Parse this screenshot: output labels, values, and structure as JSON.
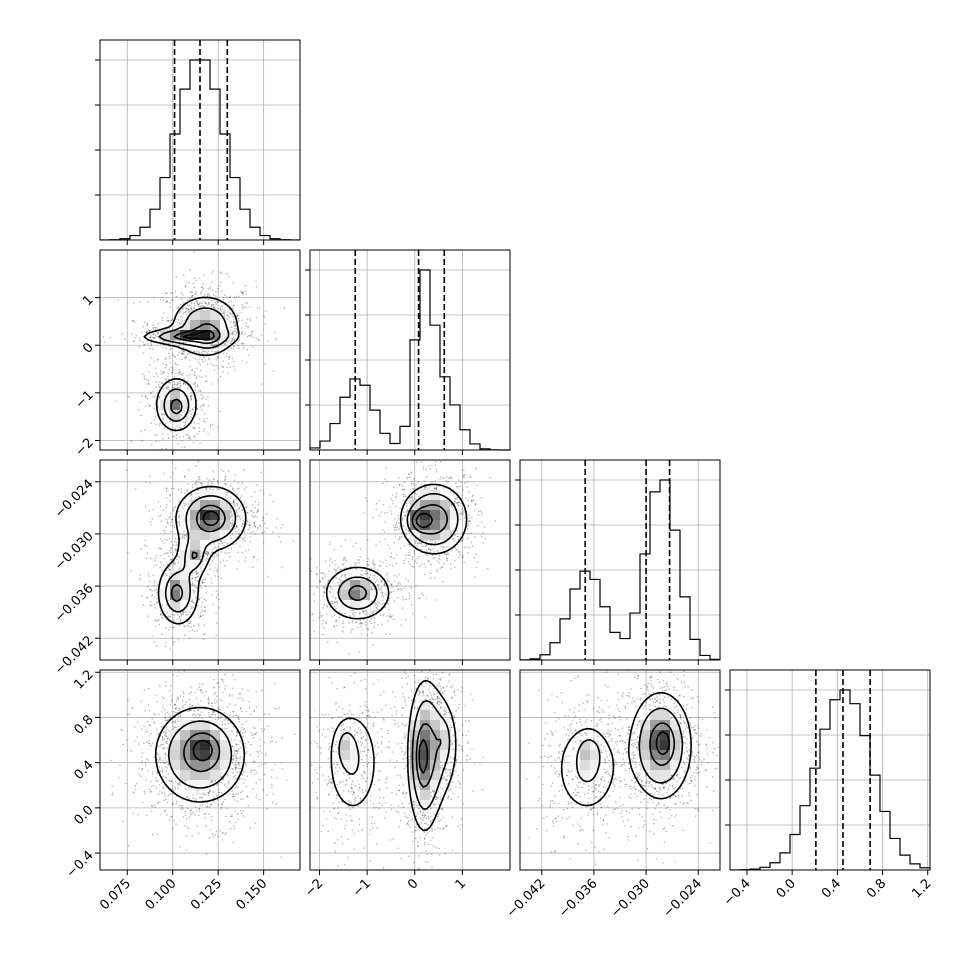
{
  "chart_data": {
    "type": "corner",
    "params": [
      {
        "id": "p1",
        "range": [
          0.06,
          0.17
        ],
        "ticks": [
          0.075,
          0.1,
          0.125,
          0.15
        ],
        "tick_labels": [
          "0.075",
          "0.100",
          "0.125",
          "0.150"
        ],
        "quantiles": [
          0.101,
          0.115,
          0.13
        ],
        "modes": [
          {
            "mu": 0.115,
            "sigma": 0.013,
            "w": 1.0
          }
        ]
      },
      {
        "id": "p2",
        "range": [
          -2.2,
          2.0
        ],
        "ticks": [
          -2,
          -1,
          0,
          1
        ],
        "tick_labels": [
          "−2",
          "−1",
          "0",
          "1"
        ],
        "quantiles": [
          -1.25,
          0.08,
          0.62
        ],
        "modes": [
          {
            "mu": -1.2,
            "sigma": 0.33,
            "w": 0.33
          },
          {
            "mu": 0.18,
            "sigma": 0.18,
            "w": 0.37
          },
          {
            "mu": 0.55,
            "sigma": 0.32,
            "w": 0.3
          }
        ]
      },
      {
        "id": "p3",
        "range": [
          -0.0445,
          -0.0215
        ],
        "ticks": [
          -0.042,
          -0.036,
          -0.03,
          -0.024
        ],
        "tick_labels": [
          "−0.042",
          "−0.036",
          "−0.030",
          "−0.024"
        ],
        "quantiles": [
          -0.037,
          -0.03,
          -0.0273
        ],
        "modes": [
          {
            "mu": -0.0368,
            "sigma": 0.002,
            "w": 0.35
          },
          {
            "mu": -0.0282,
            "sigma": 0.0018,
            "w": 0.65
          }
        ]
      },
      {
        "id": "p4",
        "range": [
          -0.55,
          1.22
        ],
        "ticks": [
          -0.4,
          0.0,
          0.4,
          0.8,
          1.2
        ],
        "tick_labels": [
          "−0.4",
          "0.0",
          "0.4",
          "0.8",
          "1.2"
        ],
        "quantiles": [
          0.21,
          0.45,
          0.69
        ],
        "modes": [
          {
            "mu": 0.46,
            "sigma": 0.24,
            "w": 1.0
          }
        ]
      }
    ],
    "pairs": [
      {
        "x": "p1",
        "y": "p2",
        "blobs": [
          {
            "mx": 0.118,
            "my": 0.4,
            "sx": 0.011,
            "sy": 0.38,
            "w": 0.55,
            "peak": [
              0.12,
              0.2
            ]
          },
          {
            "mx": 0.102,
            "my": -1.25,
            "sx": 0.007,
            "sy": 0.35,
            "w": 0.3,
            "peak": [
              0.102,
              -1.3
            ]
          },
          {
            "mx": 0.105,
            "my": 0.18,
            "sx": 0.014,
            "sy": 0.1,
            "w": 0.15,
            "peak": [
              0.11,
              0.18
            ]
          }
        ]
      },
      {
        "x": "p1",
        "y": "p3",
        "blobs": [
          {
            "mx": 0.121,
            "my": -0.0282,
            "sx": 0.011,
            "sy": 0.0021,
            "w": 0.6,
            "peak": [
              0.121,
              -0.0282
            ]
          },
          {
            "mx": 0.103,
            "my": -0.0368,
            "sx": 0.007,
            "sy": 0.0023,
            "w": 0.3,
            "peak": [
              0.102,
              -0.0368
            ]
          },
          {
            "mx": 0.112,
            "my": -0.0325,
            "sx": 0.005,
            "sy": 0.0015,
            "w": 0.1,
            "peak": [
              0.112,
              -0.0325
            ]
          }
        ]
      },
      {
        "x": "p1",
        "y": "p4",
        "blobs": [
          {
            "mx": 0.115,
            "my": 0.47,
            "sx": 0.014,
            "sy": 0.24,
            "w": 1.0,
            "peak": [
              0.117,
              0.52
            ]
          }
        ]
      },
      {
        "x": "p2",
        "y": "p3",
        "blobs": [
          {
            "mx": 0.4,
            "my": -0.0283,
            "sx": 0.38,
            "sy": 0.0022,
            "w": 0.62,
            "peak": [
              0.12,
              -0.0285
            ]
          },
          {
            "mx": -1.2,
            "my": -0.0368,
            "sx": 0.42,
            "sy": 0.0019,
            "w": 0.38,
            "peak": [
              -1.2,
              -0.0368
            ]
          }
        ]
      },
      {
        "x": "p2",
        "y": "p4",
        "blobs": [
          {
            "mx": -1.3,
            "my": 0.4,
            "sx": 0.35,
            "sy": 0.3,
            "w": 0.33,
            "peak": [
              -1.45,
              0.55
            ]
          },
          {
            "mx": 0.2,
            "my": 0.45,
            "sx": 0.2,
            "sy": 0.38,
            "w": 0.45,
            "peak": [
              0.15,
              0.45
            ]
          },
          {
            "mx": 0.55,
            "my": 0.55,
            "sx": 0.25,
            "sy": 0.3,
            "w": 0.22,
            "peak": [
              0.6,
              0.6
            ]
          }
        ]
      },
      {
        "x": "p3",
        "y": "p4",
        "blobs": [
          {
            "mx": -0.0283,
            "my": 0.55,
            "sx": 0.002,
            "sy": 0.27,
            "w": 0.65,
            "peak": [
              -0.028,
              0.58
            ]
          },
          {
            "mx": -0.0368,
            "my": 0.35,
            "sx": 0.0022,
            "sy": 0.25,
            "w": 0.35,
            "peak": [
              -0.0365,
              0.5
            ]
          }
        ]
      }
    ],
    "grid": true,
    "title": "",
    "xlabel": "",
    "ylabel": ""
  }
}
